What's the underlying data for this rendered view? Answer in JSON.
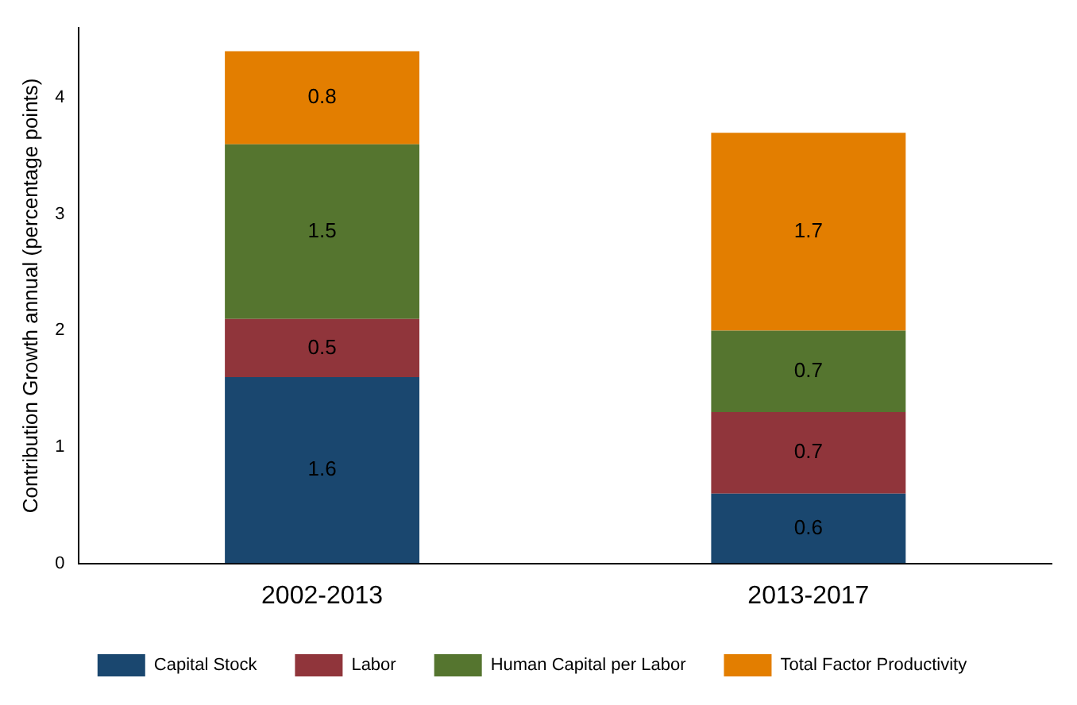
{
  "chart_data": {
    "type": "bar",
    "stacked": true,
    "ylabel": "Contribution Growth annual (percentage points)",
    "categories": [
      "2002-2013",
      "2013-2017"
    ],
    "series": [
      {
        "name": "Capital Stock",
        "color": "#1a476f",
        "values": [
          1.6,
          0.6
        ]
      },
      {
        "name": "Labor",
        "color": "#90353b",
        "values": [
          0.5,
          0.7
        ]
      },
      {
        "name": "Human Capital per Labor",
        "color": "#55752f",
        "values": [
          1.5,
          0.7
        ]
      },
      {
        "name": "Total Factor Productivity",
        "color": "#e37e00",
        "values": [
          0.8,
          1.7
        ]
      }
    ],
    "ylim": [
      0,
      4.6
    ],
    "yticks": [
      0,
      1,
      2,
      3,
      4
    ],
    "grid": false,
    "legend": "bottom",
    "data_labels": true
  }
}
